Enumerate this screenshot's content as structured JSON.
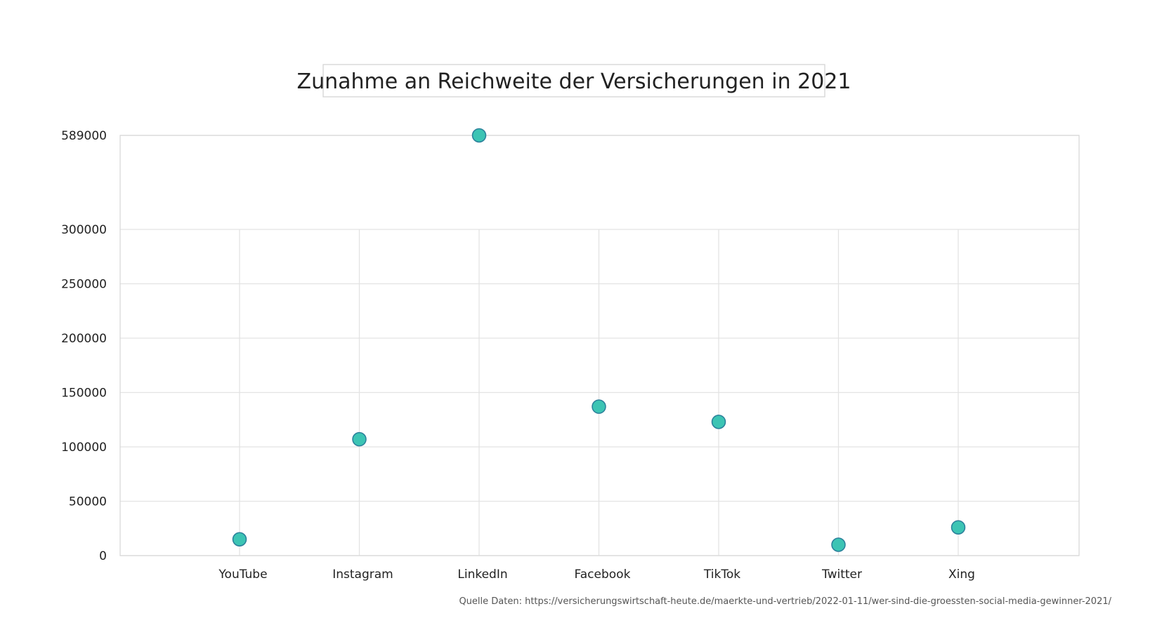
{
  "chart_data": {
    "type": "scatter",
    "title": "Zunahme an Reichweite der Versicherungen in 2021",
    "categories": [
      "YouTube",
      "Instagram",
      "LinkedIn",
      "Facebook",
      "TikTok",
      "Twitter",
      "Xing"
    ],
    "values": [
      15000,
      107000,
      589000,
      137000,
      123000,
      10000,
      26000
    ],
    "y_ticks": [
      "0",
      "50000",
      "100000",
      "150000",
      "200000",
      "250000",
      "300000",
      "589000"
    ],
    "ylim": [
      0,
      589000
    ],
    "y_axis_break": "axis jumps from 300000 directly to 589000",
    "grid": true,
    "marker_color": "#3cc4b4",
    "marker_edge_color": "#2a7f9a",
    "source": "Quelle Daten: https://versicherungswirtschaft-heute.de/maerkte-und-vertrieb/2022-01-11/wer-sind-die-groessten-social-media-gewinner-2021/"
  }
}
